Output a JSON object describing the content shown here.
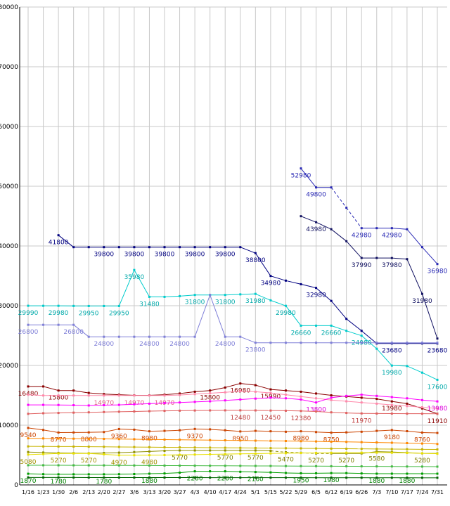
{
  "chart_data": {
    "type": "line",
    "grid": true,
    "legend": "none",
    "background": "#ffffff",
    "grid_color": "#c8c8c8",
    "axis_color": "#000000",
    "y_max": 80000,
    "y_ticks": [
      0,
      10000,
      20000,
      30000,
      40000,
      50000,
      60000,
      70000,
      80000
    ],
    "x_categories": [
      "1/16",
      "1/23",
      "1/30",
      "2/6",
      "2/13",
      "2/20",
      "2/27",
      "3/6",
      "3/13",
      "3/20",
      "3/27",
      "4/3",
      "4/10",
      "4/17",
      "4/24",
      "5/1",
      "5/15",
      "5/22",
      "5/29",
      "6/5",
      "6/12",
      "6/19",
      "6/26",
      "7/3",
      "7/10",
      "7/17",
      "7/24",
      "7/31"
    ],
    "series": [
      {
        "name": "series-01",
        "color": "#000080",
        "values": [
          null,
          null,
          41800,
          39800,
          39800,
          39800,
          39800,
          39800,
          39800,
          39800,
          39800,
          39800,
          39800,
          39800,
          39800,
          38800,
          34980,
          34200,
          33600,
          32980,
          30800,
          27800,
          25800,
          23680,
          23680,
          23680,
          23680,
          23680
        ],
        "label_indices": [
          2,
          5,
          7,
          9,
          11,
          13,
          15,
          16,
          19,
          24,
          27
        ]
      },
      {
        "name": "series-02",
        "color": "#2828b4",
        "values": [
          null,
          null,
          null,
          null,
          null,
          null,
          null,
          null,
          null,
          null,
          null,
          null,
          null,
          null,
          null,
          null,
          null,
          null,
          52980,
          49800,
          49800,
          46400,
          42980,
          42980,
          42980,
          42800,
          39800,
          36980
        ],
        "label_indices": [
          18,
          19,
          22,
          24,
          27
        ],
        "dashed_segments": [
          [
            20,
            22
          ]
        ]
      },
      {
        "name": "series-03",
        "color": "#101060",
        "values": [
          null,
          null,
          null,
          null,
          null,
          null,
          null,
          null,
          null,
          null,
          null,
          null,
          null,
          null,
          null,
          null,
          null,
          null,
          44980,
          43980,
          42800,
          40800,
          37990,
          37990,
          37980,
          37800,
          31980,
          24500
        ],
        "label_indices": [
          19,
          22,
          24,
          26
        ]
      },
      {
        "name": "series-04",
        "color": "#00cccc",
        "label_color": "#00aaaa",
        "values": [
          29990,
          29980,
          29980,
          29960,
          29950,
          29950,
          29950,
          35980,
          31480,
          31480,
          31600,
          31800,
          31800,
          31800,
          31900,
          31980,
          30900,
          29980,
          26660,
          26660,
          26660,
          25800,
          24980,
          22800,
          19980,
          19900,
          18800,
          17600
        ],
        "label_indices": [
          0,
          2,
          4,
          6,
          7,
          8,
          11,
          13,
          15,
          17,
          18,
          20,
          22,
          24,
          27
        ]
      },
      {
        "name": "series-05",
        "color": "#8080d8",
        "values": [
          26800,
          26800,
          26800,
          26800,
          24800,
          24800,
          24800,
          24800,
          24800,
          24800,
          24800,
          24800,
          31800,
          24800,
          24800,
          23800,
          23800,
          23800,
          23800,
          23800,
          23800,
          23800,
          23800,
          23800,
          23800,
          23800,
          23800,
          23800
        ],
        "label_indices": [
          0,
          3,
          5,
          8,
          10,
          13,
          15
        ]
      },
      {
        "name": "series-06",
        "color": "#8b0000",
        "values": [
          16480,
          16480,
          15800,
          15800,
          15400,
          15200,
          15100,
          15000,
          15000,
          15100,
          15300,
          15600,
          15800,
          16300,
          16980,
          16700,
          15990,
          15800,
          15600,
          15300,
          15000,
          14800,
          14600,
          14400,
          13980,
          13600,
          12800,
          11910
        ],
        "label_indices": [
          0,
          2,
          12,
          14,
          16,
          24,
          27
        ]
      },
      {
        "name": "series-07",
        "color": "#ff88aa",
        "label_color": "#e06080",
        "values": [
          15100,
          14970,
          14970,
          14970,
          14970,
          14970,
          14970,
          14970,
          14970,
          14970,
          15050,
          15200,
          15350,
          15500,
          15700,
          15600,
          15400,
          15100,
          14800,
          14500,
          14200,
          14000,
          13800,
          13600,
          13400,
          13200,
          13000,
          12800
        ],
        "label_indices": [
          5,
          7,
          9
        ]
      },
      {
        "name": "series-08",
        "color": "#ff00ff",
        "label_color": "#dd00dd",
        "values": [
          13400,
          13400,
          13380,
          13350,
          13300,
          13350,
          13400,
          13500,
          13600,
          13700,
          13800,
          13900,
          14000,
          14150,
          14300,
          14450,
          14600,
          14500,
          14300,
          13800,
          14600,
          14900,
          15100,
          14900,
          14700,
          14500,
          14200,
          13980
        ],
        "label_indices": [
          19,
          27
        ]
      },
      {
        "name": "series-09",
        "color": "#e06060",
        "label_color": "#c04040",
        "values": [
          11900,
          12000,
          12050,
          12100,
          12150,
          12200,
          12250,
          12300,
          12350,
          12400,
          12430,
          12460,
          12470,
          12480,
          12480,
          12470,
          12450,
          12420,
          12380,
          12300,
          12150,
          12050,
          11970,
          11950,
          11940,
          11930,
          11920,
          11910
        ],
        "label_indices": [
          14,
          16,
          18,
          22
        ]
      },
      {
        "name": "series-10",
        "color": "#cc4400",
        "values": [
          9540,
          9200,
          8770,
          8780,
          8800,
          8850,
          9360,
          9250,
          8980,
          9050,
          9150,
          9370,
          9300,
          9150,
          8950,
          9050,
          8980,
          8900,
          8980,
          8850,
          8750,
          8800,
          8900,
          9050,
          9180,
          9000,
          8760,
          8700
        ],
        "label_indices": [
          0,
          2,
          4,
          6,
          8,
          11,
          14,
          18,
          20,
          24,
          26
        ]
      },
      {
        "name": "series-11",
        "color": "#ff8800",
        "values": [
          7800,
          7780,
          7760,
          7740,
          7720,
          7700,
          7680,
          7650,
          7620,
          7590,
          7560,
          7530,
          7500,
          7470,
          7440,
          7410,
          7380,
          7350,
          7320,
          7280,
          7240,
          7200,
          7160,
          7110,
          7060,
          7000,
          6930,
          6850
        ],
        "label_indices": []
      },
      {
        "name": "series-12",
        "color": "#c8b400",
        "values": [
          6450,
          6440,
          6430,
          6420,
          6400,
          6380,
          6360,
          6340,
          6320,
          6300,
          6280,
          6260,
          6240,
          6220,
          6200,
          6180,
          6160,
          6140,
          6120,
          6100,
          6080,
          6060,
          6040,
          6020,
          6000,
          5980,
          5960,
          5940
        ],
        "label_indices": []
      },
      {
        "name": "series-13",
        "color": "#909000",
        "label_color": "#808000",
        "values": [
          5500,
          5420,
          5360,
          5320,
          5300,
          5340,
          5400,
          5500,
          5600,
          5700,
          5770,
          5770,
          5770,
          5770,
          5770,
          5770,
          5700,
          5470,
          5380,
          5270,
          5270,
          5270,
          5270,
          5580,
          5520,
          5400,
          5280,
          5280
        ],
        "label_indices": [
          10,
          13,
          15,
          17,
          19,
          21,
          23,
          26
        ],
        "dashed_segments": [
          [
            16,
            20
          ]
        ]
      },
      {
        "name": "series-14",
        "color": "#e8e000",
        "label_color": "#a09000",
        "values": [
          5080,
          5160,
          5270,
          5270,
          5270,
          5120,
          4970,
          4970,
          4980,
          5000,
          5040,
          5080,
          5120,
          5160,
          5200,
          5240,
          5280,
          5310,
          5340,
          5360,
          5380,
          5390,
          5400,
          5400,
          5390,
          5360,
          5300,
          5220
        ],
        "label_indices": [
          0,
          2,
          4,
          6,
          8
        ]
      },
      {
        "name": "series-15",
        "color": "#44bb44",
        "values": [
          3300,
          3295,
          3290,
          3285,
          3280,
          3275,
          3270,
          3260,
          3250,
          3240,
          3230,
          3220,
          3210,
          3200,
          3190,
          3180,
          3170,
          3160,
          3150,
          3140,
          3130,
          3120,
          3110,
          3100,
          3090,
          3080,
          3070,
          3060
        ],
        "label_indices": []
      },
      {
        "name": "series-16",
        "color": "#00a000",
        "label_color": "#008000",
        "values": [
          1870,
          1800,
          1780,
          1780,
          1780,
          1780,
          1800,
          1820,
          1880,
          1920,
          2050,
          2280,
          2280,
          2280,
          2200,
          2160,
          2100,
          2000,
          1950,
          1950,
          1980,
          1980,
          1920,
          1880,
          1880,
          1880,
          1880,
          1880
        ],
        "label_indices": [
          0,
          2,
          5,
          8,
          11,
          13,
          15,
          18,
          20,
          23,
          25
        ]
      },
      {
        "name": "series-17",
        "color": "#006400",
        "values": [
          1250,
          1248,
          1246,
          1244,
          1242,
          1240,
          1238,
          1236,
          1234,
          1232,
          1230,
          1228,
          1226,
          1224,
          1222,
          1220,
          1218,
          1216,
          1214,
          1212,
          1210,
          1208,
          1206,
          1204,
          1202,
          1200,
          1198,
          1196
        ],
        "label_indices": []
      }
    ]
  }
}
